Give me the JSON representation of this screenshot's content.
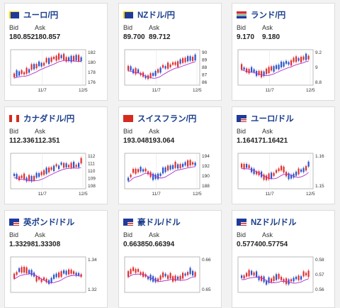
{
  "bid_label": "Bid",
  "ask_label": "Ask",
  "colors": {
    "up": "#e03030",
    "down": "#2a55c8",
    "ma": "#b030c8",
    "grid": "#aaaaaa",
    "title": "#1a3e8c"
  },
  "cards": [
    {
      "pair": "ユーロ/円",
      "flag": "eu-flag-icon",
      "bid": "180.852",
      "ask": "180.857",
      "y_ticks": [
        "182",
        "180",
        "178",
        "176"
      ],
      "x_ticks": [
        "11/7",
        "12/5"
      ]
    },
    {
      "pair": "NZドル/円",
      "flag": "nz-flag-icon",
      "bid": "89.700",
      "ask": "89.712",
      "y_ticks": [
        "90",
        "89",
        "88",
        "87",
        "86"
      ],
      "x_ticks": [
        "11/7",
        "12/5"
      ]
    },
    {
      "pair": "ランド/円",
      "flag": "za-flag-icon",
      "bid": "9.170",
      "ask": "9.180",
      "y_ticks": [
        "9.2",
        "9",
        "8.8"
      ],
      "x_ticks": [
        "11/7",
        "12/5"
      ]
    },
    {
      "pair": "カナダドル/円",
      "flag": "ca-flag-icon",
      "bid": "112.336",
      "ask": "112.351",
      "y_ticks": [
        "112",
        "111",
        "110",
        "109",
        "108"
      ],
      "x_ticks": [
        "11/7",
        "12/5"
      ]
    },
    {
      "pair": "スイスフラン/円",
      "flag": "ch-flag-icon",
      "bid": "193.048",
      "ask": "193.064",
      "y_ticks": [
        "194",
        "192",
        "190",
        "188"
      ],
      "x_ticks": [
        "11/7",
        "12/5"
      ]
    },
    {
      "pair": "ユーロ/ドル",
      "flag": "us-flag-icon",
      "bid": "1.16417",
      "ask": "1.16421",
      "y_ticks": [
        "1.16",
        "1.15"
      ],
      "x_ticks": [
        "11/7",
        "12/5"
      ]
    },
    {
      "pair": "英ポンド/ドル",
      "flag": "us-flag-icon",
      "bid": "1.33298",
      "ask": "1.33308",
      "y_ticks": [
        "1.34",
        "1.32"
      ],
      "x_ticks": []
    },
    {
      "pair": "豪ドル/ドル",
      "flag": "us-flag-icon",
      "bid": "0.66385",
      "ask": "0.66394",
      "y_ticks": [
        "0.66",
        "0.65"
      ],
      "x_ticks": []
    },
    {
      "pair": "NZドル/ドル",
      "flag": "us-flag-icon",
      "bid": "0.57740",
      "ask": "0.57754",
      "y_ticks": [
        "0.58",
        "0.57",
        "0.56"
      ],
      "x_ticks": []
    }
  ]
}
